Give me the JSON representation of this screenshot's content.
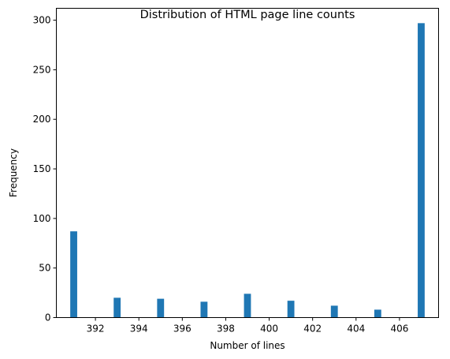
{
  "chart_data": {
    "type": "bar",
    "title": "Distribution of HTML page line counts",
    "xlabel": "Number of lines",
    "ylabel": "Frequency",
    "xlim": [
      390.2,
      407.8
    ],
    "ylim": [
      0,
      312
    ],
    "x_ticks": [
      392,
      394,
      396,
      398,
      400,
      402,
      404,
      406
    ],
    "y_ticks": [
      0,
      50,
      100,
      150,
      200,
      250,
      300
    ],
    "bar_width": 0.32,
    "color": "#1f77b4",
    "grid": false,
    "bars": [
      {
        "x": 391,
        "y": 87
      },
      {
        "x": 393,
        "y": 20
      },
      {
        "x": 395,
        "y": 19
      },
      {
        "x": 397,
        "y": 16
      },
      {
        "x": 399,
        "y": 24
      },
      {
        "x": 401,
        "y": 17
      },
      {
        "x": 403,
        "y": 12
      },
      {
        "x": 405,
        "y": 8
      },
      {
        "x": 407,
        "y": 297
      }
    ]
  }
}
